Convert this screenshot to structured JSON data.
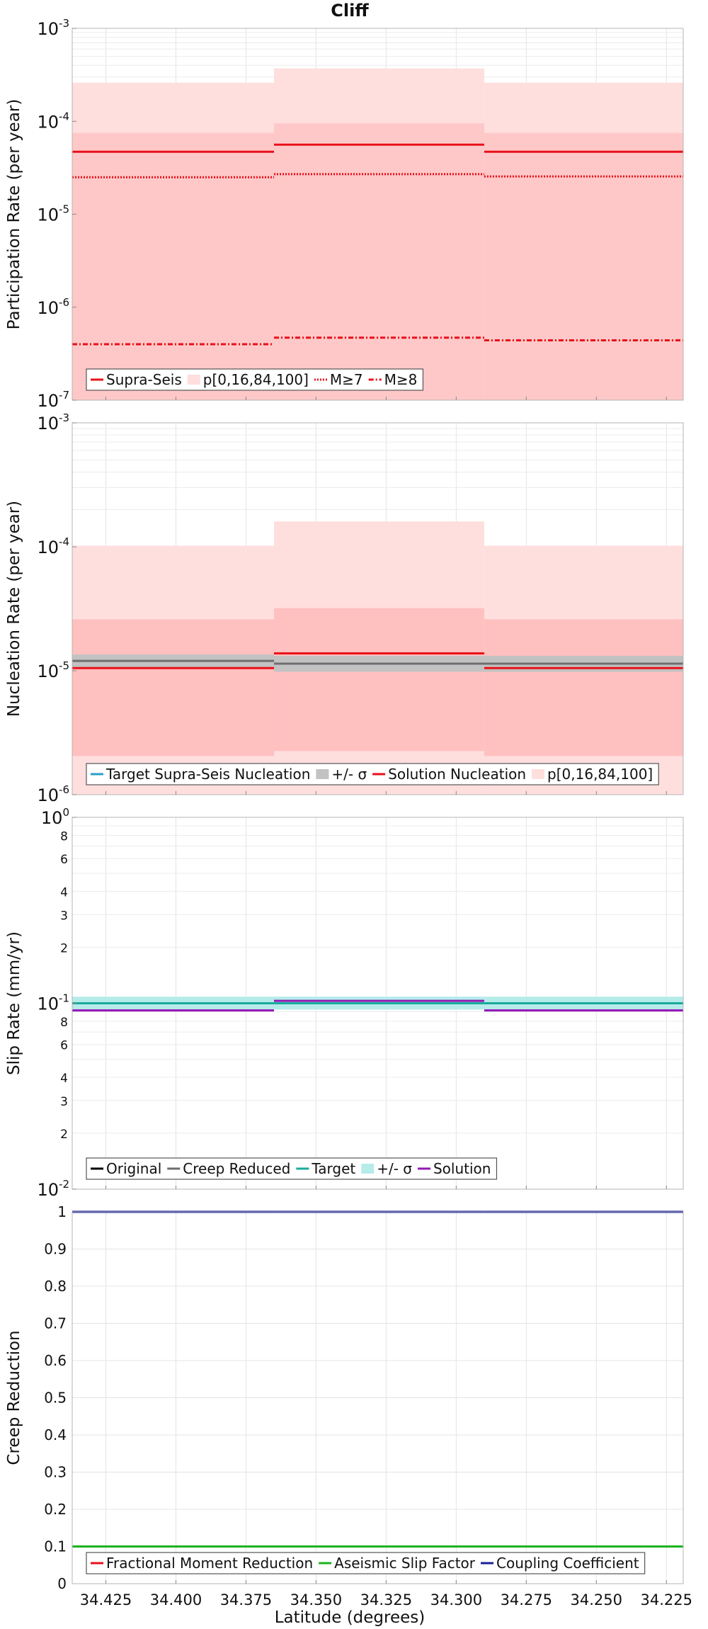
{
  "figure": {
    "title": "Cliff",
    "xlabel": "Latitude (degrees)",
    "xticks": [
      "34.425",
      "34.400",
      "34.375",
      "34.350",
      "34.325",
      "34.300",
      "34.275",
      "34.250",
      "34.225"
    ],
    "xlim": [
      34.437,
      34.219
    ],
    "segment_bounds": [
      34.437,
      34.365,
      34.29,
      34.219
    ]
  },
  "chart_data": [
    {
      "type": "line",
      "scale": "log",
      "ylabel": "Participation Rate (per year)",
      "ylim": [
        1e-07,
        0.001
      ],
      "ytick_labels": [
        {
          "base": "10",
          "exp": "-7"
        },
        {
          "base": "10",
          "exp": "-6"
        },
        {
          "base": "10",
          "exp": "-5"
        },
        {
          "base": "10",
          "exp": "-4"
        },
        {
          "base": "10",
          "exp": "-3"
        }
      ],
      "bands": [
        {
          "role": "p0-100",
          "color": "#ffdede",
          "lower": [
            1e-07,
            1e-07,
            1e-07
          ],
          "upper": [
            0.00026,
            0.00037,
            0.00026
          ]
        },
        {
          "role": "p16-84",
          "color": "#ffc8c8",
          "lower": [
            1e-07,
            1e-07,
            1e-07
          ],
          "upper": [
            7.5e-05,
            9.5e-05,
            7.5e-05
          ]
        }
      ],
      "series": [
        {
          "name": "Supra-Seis",
          "color": "#e8101a",
          "dash": "",
          "values": [
            4.7e-05,
            5.6e-05,
            4.7e-05
          ]
        },
        {
          "name": "M≥7",
          "color": "#e8101a",
          "dash": "2,2",
          "values": [
            2.5e-05,
            2.7e-05,
            2.55e-05
          ]
        },
        {
          "name": "M≥8",
          "color": "#e8101a",
          "dash": "7,3,2,3",
          "values": [
            4e-07,
            4.7e-07,
            4.4e-07
          ]
        }
      ],
      "legend": [
        {
          "label": "Supra-Seis",
          "kind": "line",
          "color": "#e8101a",
          "dash": ""
        },
        {
          "label": "p[0,16,84,100]",
          "kind": "patch",
          "color": "#ffdede"
        },
        {
          "label": "M≥7",
          "kind": "line",
          "color": "#e8101a",
          "dash": "2,2"
        },
        {
          "label": "M≥8",
          "kind": "line",
          "color": "#e8101a",
          "dash": "7,3,2,3"
        }
      ]
    },
    {
      "type": "line",
      "scale": "log",
      "ylabel": "Nucleation Rate (per year)",
      "ylim": [
        1e-06,
        0.001
      ],
      "ytick_labels": [
        {
          "base": "10",
          "exp": "-6"
        },
        {
          "base": "10",
          "exp": "-5"
        },
        {
          "base": "10",
          "exp": "-4"
        },
        {
          "base": "10",
          "exp": "-3"
        }
      ],
      "bands": [
        {
          "role": "p0-100",
          "color": "#ffdede",
          "lower": [
            1e-06,
            1e-06,
            1e-06
          ],
          "upper": [
            0.000102,
            0.00016,
            0.000102
          ]
        },
        {
          "role": "p16-84",
          "color": "#ffc0c0",
          "lower": [
            2.05e-06,
            2.25e-06,
            2.05e-06
          ],
          "upper": [
            2.6e-05,
            3.2e-05,
            2.6e-05
          ]
        },
        {
          "role": "sigma",
          "color": "#c2c2c2",
          "lower": [
            1.05e-05,
            9.8e-06,
            9.8e-06
          ],
          "upper": [
            1.35e-05,
            1.32e-05,
            1.32e-05
          ]
        }
      ],
      "series": [
        {
          "name": "Target Supra-Seis Nucleation",
          "color": "#6e6e6e",
          "dash": "",
          "values": [
            1.2e-05,
            1.14e-05,
            1.14e-05
          ]
        },
        {
          "name": "Solution Nucleation",
          "color": "#e8101a",
          "dash": "",
          "values": [
            1.05e-05,
            1.38e-05,
            1.05e-05
          ]
        }
      ],
      "legend": [
        {
          "label": "Target Supra-Seis Nucleation",
          "kind": "line",
          "color": "#2a9fc4",
          "dash": ""
        },
        {
          "label": "+/- σ",
          "kind": "patch",
          "color": "#c2c2c2"
        },
        {
          "label": "Solution Nucleation",
          "kind": "line",
          "color": "#e8101a",
          "dash": ""
        },
        {
          "label": "p[0,16,84,100]",
          "kind": "patch",
          "color": "#ffdede"
        }
      ]
    },
    {
      "type": "line",
      "scale": "log",
      "ylabel": "Slip Rate (mm/yr)",
      "ylim": [
        0.01,
        1
      ],
      "ytick_labels": [
        {
          "base": "10",
          "exp": "-2"
        },
        {
          "base": "10",
          "exp": "-1"
        },
        {
          "base": "10",
          "exp": "0"
        }
      ],
      "minor_ticks": [
        {
          "value": 0.02,
          "label": "2"
        },
        {
          "value": 0.03,
          "label": "3"
        },
        {
          "value": 0.04,
          "label": "4"
        },
        {
          "value": 0.06,
          "label": "6"
        },
        {
          "value": 0.08,
          "label": "8"
        },
        {
          "value": 0.2,
          "label": "2"
        },
        {
          "value": 0.3,
          "label": "3"
        },
        {
          "value": 0.4,
          "label": "4"
        },
        {
          "value": 0.6,
          "label": "6"
        },
        {
          "value": 0.8,
          "label": "8"
        }
      ],
      "bands": [
        {
          "role": "sigma",
          "color": "#b5ecea",
          "lower": [
            0.0925,
            0.0925,
            0.0925
          ],
          "upper": [
            0.1085,
            0.1085,
            0.1085
          ]
        }
      ],
      "series": [
        {
          "name": "Target",
          "color": "#1aab9c",
          "dash": "",
          "values": [
            0.1,
            0.1,
            0.1
          ]
        },
        {
          "name": "Solution",
          "color": "#9218b5",
          "dash": "",
          "values": [
            0.0915,
            0.103,
            0.0915
          ]
        }
      ],
      "legend": [
        {
          "label": "Original",
          "kind": "line",
          "color": "#000000",
          "dash": ""
        },
        {
          "label": "Creep Reduced",
          "kind": "line",
          "color": "#6e6e6e",
          "dash": ""
        },
        {
          "label": "Target",
          "kind": "line",
          "color": "#1aab9c",
          "dash": ""
        },
        {
          "label": "+/- σ",
          "kind": "patch",
          "color": "#b5ecea"
        },
        {
          "label": "Solution",
          "kind": "line",
          "color": "#9218b5",
          "dash": ""
        }
      ]
    },
    {
      "type": "line",
      "scale": "linear",
      "ylabel": "Creep Reduction",
      "ylim": [
        0,
        1
      ],
      "ytick_labels": [
        "0",
        "0.1",
        "0.2",
        "0.3",
        "0.4",
        "0.5",
        "0.6",
        "0.7",
        "0.8",
        "0.9",
        "1"
      ],
      "bands": [],
      "series": [
        {
          "name": "Fractional Moment Reduction",
          "color": "#e8101a",
          "dash": "",
          "values": [
            0.1,
            0.1,
            0.1
          ]
        },
        {
          "name": "Aseismic Slip Factor",
          "color": "#1db31d",
          "dash": "",
          "values": [
            0.1,
            0.1,
            0.1
          ]
        },
        {
          "name": "Coupling Coefficient",
          "color": "#1a1f9a",
          "dash": "",
          "values": [
            1.0,
            1.0,
            1.0
          ]
        }
      ],
      "legend": [
        {
          "label": "Fractional Moment Reduction",
          "kind": "line",
          "color": "#e8101a",
          "dash": ""
        },
        {
          "label": "Aseismic Slip Factor",
          "kind": "line",
          "color": "#1db31d",
          "dash": ""
        },
        {
          "label": "Coupling Coefficient",
          "kind": "line",
          "color": "#1a1f9a",
          "dash": ""
        }
      ]
    }
  ]
}
